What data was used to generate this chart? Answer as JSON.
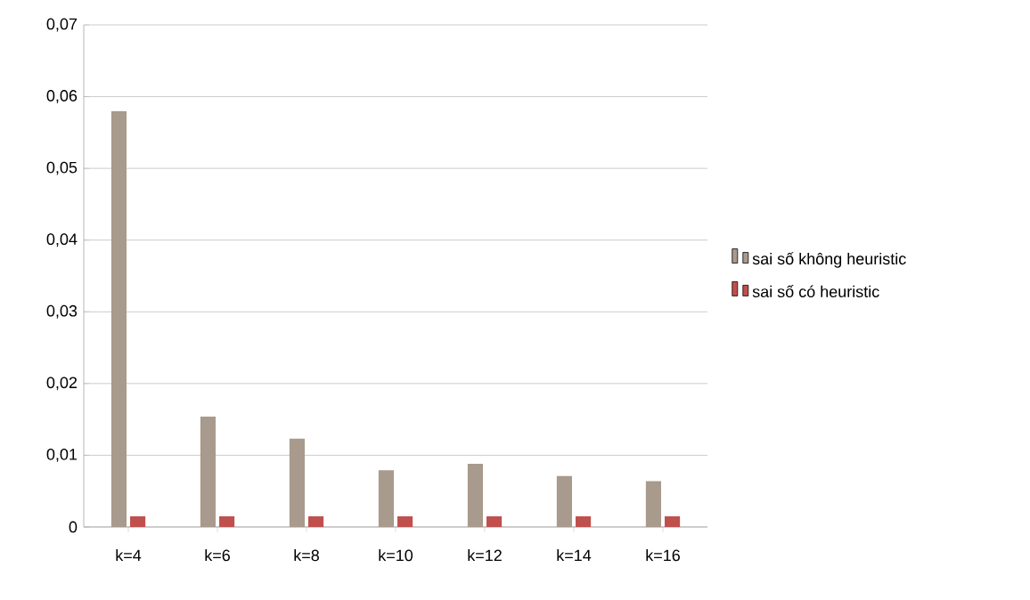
{
  "chart_data": {
    "type": "bar",
    "categories": [
      "k=4",
      "k=6",
      "k=8",
      "k=10",
      "k=12",
      "k=14",
      "k=16"
    ],
    "series": [
      {
        "name": "sai số không heuristic",
        "color": "#a89a8c",
        "values": [
          0.058,
          0.0154,
          0.0123,
          0.0079,
          0.0088,
          0.0071,
          0.0064
        ]
      },
      {
        "name": "sai số có heuristic",
        "color": "#c0504d",
        "values": [
          0.0015,
          0.0015,
          0.0015,
          0.0015,
          0.0015,
          0.0015,
          0.0015
        ]
      }
    ],
    "ylim": [
      0,
      0.07
    ],
    "yticks": [
      0,
      {
        "value": 0.01,
        "label": "0,01"
      },
      {
        "value": 0.02,
        "label": "0,02"
      },
      {
        "value": 0.03,
        "label": "0,03"
      },
      {
        "value": 0.04,
        "label": "0,04"
      },
      {
        "value": 0.05,
        "label": "0,05"
      },
      {
        "value": 0.06,
        "label": "0,06"
      },
      {
        "value": 0.07,
        "label": "0,07"
      }
    ],
    "grid": "y",
    "legend": "right"
  }
}
